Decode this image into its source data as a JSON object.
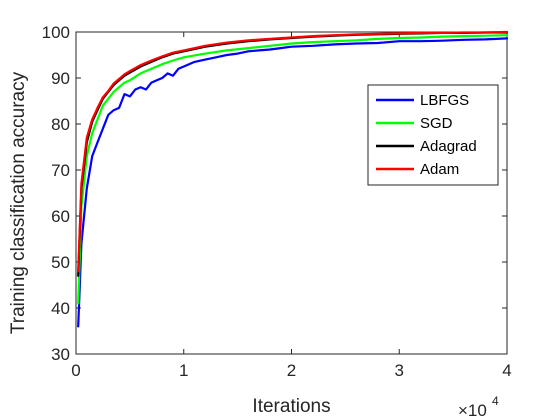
{
  "chart_data": {
    "type": "line",
    "title": "",
    "xlabel": "Iterations",
    "ylabel": "Training classification accuracy",
    "x_scale_label": "×10",
    "x_scale_exponent": "4",
    "xlim": [
      0,
      4
    ],
    "ylim": [
      30,
      100
    ],
    "xticks": [
      0,
      1,
      2,
      3,
      4
    ],
    "xtick_labels": [
      "0",
      "1",
      "2",
      "3",
      "4"
    ],
    "yticks": [
      30,
      40,
      50,
      60,
      70,
      80,
      90,
      100
    ],
    "ytick_labels": [
      "30",
      "40",
      "50",
      "60",
      "70",
      "80",
      "90",
      "100"
    ],
    "grid": false,
    "legend_position": "top-right inside",
    "x_units": "iterations ×10^4",
    "series": [
      {
        "name": "LBFGS",
        "color": "#0000ff",
        "x": [
          0.02,
          0.05,
          0.1,
          0.15,
          0.2,
          0.25,
          0.3,
          0.35,
          0.4,
          0.45,
          0.5,
          0.55,
          0.6,
          0.65,
          0.7,
          0.75,
          0.8,
          0.85,
          0.9,
          0.95,
          1.0,
          1.1,
          1.2,
          1.3,
          1.4,
          1.5,
          1.6,
          1.7,
          1.8,
          1.9,
          2.0,
          2.2,
          2.4,
          2.6,
          2.8,
          3.0,
          3.2,
          3.4,
          3.6,
          3.8,
          4.0
        ],
        "values": [
          36,
          54,
          66,
          73,
          76,
          79,
          82,
          83,
          83.5,
          86.5,
          86,
          87.5,
          88,
          87.5,
          89,
          89.5,
          90,
          91,
          90.5,
          92,
          92.5,
          93.5,
          94,
          94.5,
          95,
          95.3,
          95.8,
          96,
          96.2,
          96.5,
          96.8,
          97,
          97.3,
          97.5,
          97.6,
          98,
          98,
          98.1,
          98.3,
          98.4,
          98.6
        ]
      },
      {
        "name": "SGD",
        "color": "#00ff00",
        "x": [
          0.02,
          0.05,
          0.1,
          0.15,
          0.2,
          0.25,
          0.3,
          0.35,
          0.4,
          0.45,
          0.5,
          0.6,
          0.7,
          0.8,
          0.9,
          1.0,
          1.2,
          1.4,
          1.6,
          1.8,
          2.0,
          2.2,
          2.4,
          2.6,
          2.8,
          3.0,
          3.2,
          3.4,
          3.6,
          3.8,
          4.0
        ],
        "values": [
          41,
          62,
          73,
          78,
          81,
          84,
          85.5,
          87,
          88,
          89,
          89.5,
          91,
          92,
          93,
          93.8,
          94.5,
          95.3,
          96,
          96.5,
          97,
          97.5,
          97.8,
          98,
          98.2,
          98.5,
          98.7,
          98.8,
          99,
          99.1,
          99.2,
          99.3
        ]
      },
      {
        "name": "Adagrad",
        "color": "#000000",
        "x": [
          0.02,
          0.05,
          0.1,
          0.15,
          0.2,
          0.25,
          0.3,
          0.35,
          0.4,
          0.45,
          0.5,
          0.6,
          0.7,
          0.8,
          0.9,
          1.0,
          1.2,
          1.4,
          1.6,
          1.8,
          2.0,
          2.2,
          2.4,
          2.6,
          2.8,
          3.0,
          3.2,
          3.4,
          3.6,
          3.8,
          4.0
        ],
        "values": [
          47,
          66,
          76,
          80.5,
          83,
          85.5,
          87,
          88.5,
          89.5,
          90.5,
          91.2,
          92.5,
          93.5,
          94.5,
          95.3,
          95.8,
          96.8,
          97.5,
          98,
          98.4,
          98.7,
          99,
          99.2,
          99.4,
          99.5,
          99.6,
          99.7,
          99.8,
          99.8,
          99.9,
          99.9
        ]
      },
      {
        "name": "Adam",
        "color": "#ff0000",
        "x": [
          0.02,
          0.05,
          0.1,
          0.15,
          0.2,
          0.25,
          0.3,
          0.35,
          0.4,
          0.45,
          0.5,
          0.6,
          0.7,
          0.8,
          0.9,
          1.0,
          1.2,
          1.4,
          1.6,
          1.8,
          2.0,
          2.2,
          2.4,
          2.6,
          2.8,
          3.0,
          3.2,
          3.4,
          3.6,
          3.8,
          4.0
        ],
        "values": [
          48,
          67,
          77,
          81,
          83.5,
          85.8,
          87.2,
          88.8,
          89.8,
          90.8,
          91.5,
          92.8,
          93.8,
          94.7,
          95.5,
          96,
          97,
          97.7,
          98.2,
          98.5,
          98.8,
          99.1,
          99.3,
          99.5,
          99.6,
          99.7,
          99.8,
          99.8,
          99.9,
          99.9,
          100
        ]
      }
    ]
  }
}
